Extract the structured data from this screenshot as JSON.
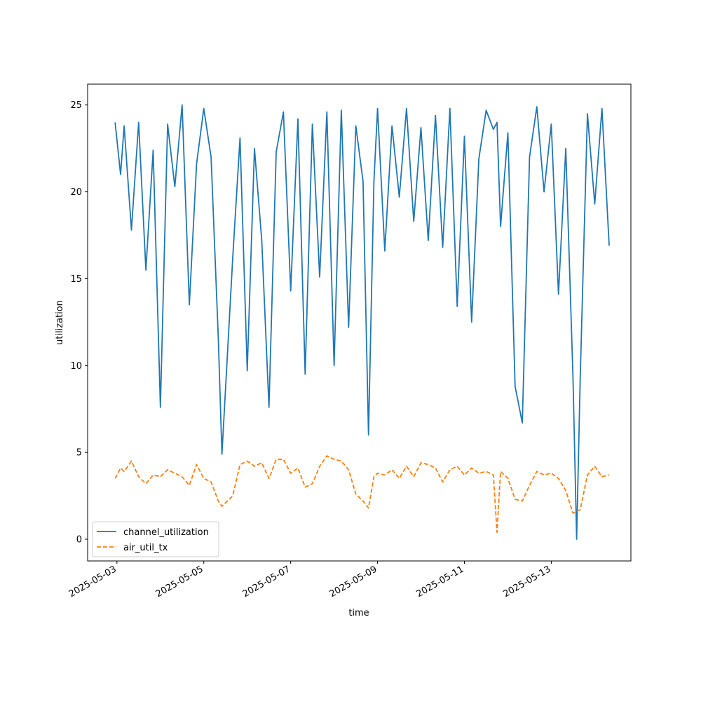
{
  "chart_data": {
    "type": "line",
    "title": "",
    "xlabel": "time",
    "ylabel": "utilization",
    "x_ticks": [
      "2025-05-03",
      "2025-05-05",
      "2025-05-07",
      "2025-05-09",
      "2025-05-11",
      "2025-05-13"
    ],
    "y_ticks": [
      "0",
      "5",
      "10",
      "15",
      "20",
      "25"
    ],
    "xlim": [
      "2025-05-02T07:48",
      "2025-05-14T20:00"
    ],
    "ylim": [
      -1.25,
      26.2
    ],
    "grid": false,
    "legend_position": "lower left",
    "x": [
      "2025-05-02T23:00",
      "2025-05-03T02:00",
      "2025-05-03T04:00",
      "2025-05-03T08:00",
      "2025-05-03T12:00",
      "2025-05-03T16:00",
      "2025-05-03T20:00",
      "2025-05-04T00:00",
      "2025-05-04T04:00",
      "2025-05-04T08:00",
      "2025-05-04T12:00",
      "2025-05-04T16:00",
      "2025-05-04T20:00",
      "2025-05-05T00:00",
      "2025-05-05T04:00",
      "2025-05-05T08:00",
      "2025-05-05T10:00",
      "2025-05-05T16:00",
      "2025-05-05T20:00",
      "2025-05-06T00:00",
      "2025-05-06T04:00",
      "2025-05-06T08:00",
      "2025-05-06T12:00",
      "2025-05-06T16:00",
      "2025-05-06T20:00",
      "2025-05-07T00:00",
      "2025-05-07T04:00",
      "2025-05-07T08:00",
      "2025-05-07T12:00",
      "2025-05-07T16:00",
      "2025-05-07T20:00",
      "2025-05-08T00:00",
      "2025-05-08T04:00",
      "2025-05-08T08:00",
      "2025-05-08T12:00",
      "2025-05-08T16:00",
      "2025-05-08T19:00",
      "2025-05-08T22:00",
      "2025-05-09T00:00",
      "2025-05-09T04:00",
      "2025-05-09T08:00",
      "2025-05-09T12:00",
      "2025-05-09T16:00",
      "2025-05-09T20:00",
      "2025-05-10T00:00",
      "2025-05-10T04:00",
      "2025-05-10T08:00",
      "2025-05-10T12:00",
      "2025-05-10T16:00",
      "2025-05-10T20:00",
      "2025-05-11T00:00",
      "2025-05-11T04:00",
      "2025-05-11T08:00",
      "2025-05-11T12:00",
      "2025-05-11T16:00",
      "2025-05-11T18:00",
      "2025-05-11T20:00",
      "2025-05-12T00:00",
      "2025-05-12T04:00",
      "2025-05-12T08:00",
      "2025-05-12T12:00",
      "2025-05-12T16:00",
      "2025-05-12T20:00",
      "2025-05-13T00:00",
      "2025-05-13T04:00",
      "2025-05-13T08:00",
      "2025-05-13T12:00",
      "2025-05-13T14:00",
      "2025-05-13T16:00",
      "2025-05-13T20:00",
      "2025-05-14T00:00",
      "2025-05-14T04:00",
      "2025-05-14T08:00"
    ],
    "series": [
      {
        "name": "channel_utilization",
        "color": "#1f77b4",
        "line_style": "solid",
        "values": [
          24.0,
          21.0,
          23.8,
          17.8,
          24.0,
          15.5,
          22.4,
          7.6,
          23.9,
          20.3,
          25.0,
          13.5,
          21.6,
          24.8,
          22.0,
          11.6,
          4.9,
          16.2,
          23.1,
          9.7,
          22.5,
          17.2,
          7.6,
          22.3,
          24.6,
          14.3,
          24.2,
          9.5,
          23.9,
          15.1,
          24.6,
          10.0,
          24.7,
          12.2,
          23.8,
          20.6,
          6.0,
          20.6,
          24.8,
          16.6,
          23.8,
          19.7,
          24.8,
          18.3,
          23.7,
          17.2,
          24.4,
          16.8,
          24.8,
          13.4,
          23.2,
          12.5,
          21.9,
          24.7,
          23.6,
          24.0,
          18.0,
          23.4,
          8.8,
          6.7,
          22.0,
          24.9,
          20.0,
          23.9,
          14.1,
          22.5,
          9.3,
          0.0,
          9.3,
          24.5,
          19.3,
          24.8,
          16.9
        ]
      },
      {
        "name": "air_util_tx",
        "color": "#ff7f0e",
        "line_style": "dashed",
        "values": [
          3.5,
          4.1,
          3.9,
          4.5,
          3.6,
          3.2,
          3.7,
          3.6,
          4.0,
          3.8,
          3.6,
          3.1,
          4.3,
          3.5,
          3.3,
          2.2,
          1.9,
          2.5,
          4.3,
          4.5,
          4.2,
          4.4,
          3.5,
          4.6,
          4.6,
          3.8,
          4.1,
          3.0,
          3.2,
          4.2,
          4.8,
          4.6,
          4.5,
          4.0,
          2.6,
          2.2,
          1.8,
          3.6,
          3.8,
          3.7,
          4.0,
          3.5,
          4.2,
          3.6,
          4.4,
          4.3,
          4.1,
          3.3,
          4.0,
          4.2,
          3.7,
          4.1,
          3.8,
          3.9,
          3.7,
          0.4,
          3.9,
          3.5,
          2.3,
          2.2,
          3.1,
          3.9,
          3.7,
          3.8,
          3.5,
          2.8,
          1.5,
          1.6,
          1.7,
          3.7,
          4.2,
          3.6,
          3.7
        ]
      }
    ],
    "legend": [
      "channel_utilization",
      "air_util_tx"
    ]
  }
}
